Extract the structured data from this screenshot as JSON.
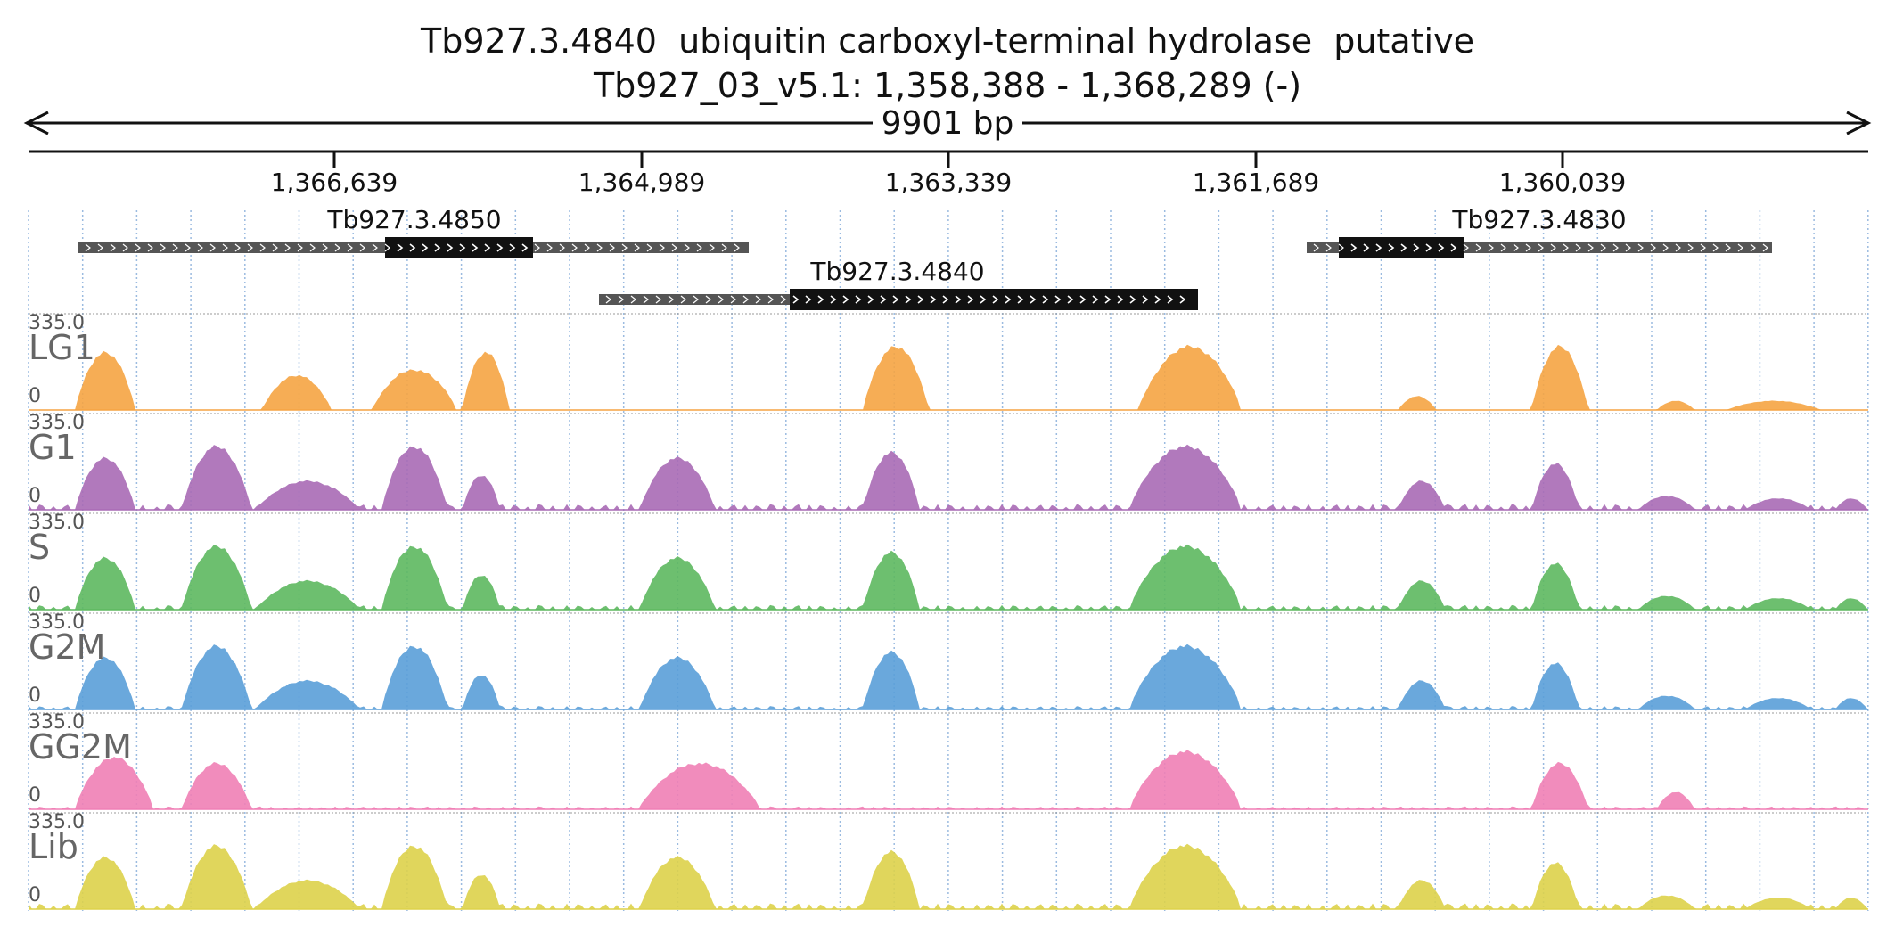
{
  "header": {
    "title": "Tb927.3.4840  ubiquitin carboxyl-terminal hydrolase  putative",
    "locus": "Tb927_03_v5.1: 1,358,388 - 1,368,289 (-)"
  },
  "ruler": {
    "span_label": "9901 bp",
    "ticks": [
      "1,366,639",
      "1,364,989",
      "1,363,339",
      "1,361,689",
      "1,360,039"
    ]
  },
  "genes": [
    {
      "name": "Tb927.3.4850"
    },
    {
      "name": "Tb927.3.4840"
    },
    {
      "name": "Tb927.3.4830"
    }
  ],
  "tracks": [
    {
      "name": "LG1",
      "max": "335.0",
      "min": "0",
      "color": "#f5a443"
    },
    {
      "name": "G1",
      "max": "335.0",
      "min": "0",
      "color": "#a86ab5"
    },
    {
      "name": "S",
      "max": "335.0",
      "min": "0",
      "color": "#5db85f"
    },
    {
      "name": "G2M",
      "max": "335.0",
      "min": "0",
      "color": "#5a9ed8"
    },
    {
      "name": "GG2M",
      "max": "335.0",
      "min": "0",
      "color": "#f07fb5"
    },
    {
      "name": "Lib",
      "max": "335.0",
      "min": "0",
      "color": "#ddd24a"
    }
  ],
  "colors": {
    "ruler": "#111111",
    "gene_utr": "#555555",
    "gene_cds": "#111111",
    "grid": "#9bbbe0"
  }
}
